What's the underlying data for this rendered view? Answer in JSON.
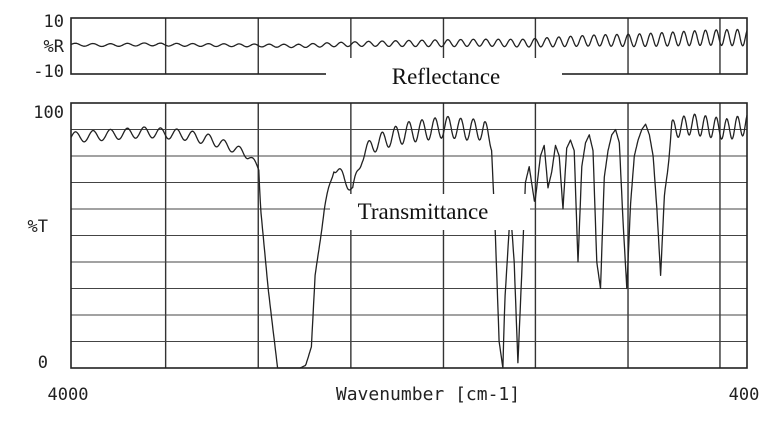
{
  "chart_data": [
    {
      "type": "line",
      "title": "",
      "annotation": "Reflectance",
      "ylabel": "%R",
      "xlim": [
        4000,
        400
      ],
      "ylim": [
        -10,
        10
      ],
      "ytick_labels": [
        "10",
        "-10"
      ],
      "grid": true,
      "series": [
        {
          "x": [
            4000,
            3800,
            3600,
            3400,
            3200,
            3000,
            2800,
            2600,
            2400,
            2200,
            2000,
            1800,
            1600,
            1400,
            1200,
            1000,
            800,
            600,
            400
          ],
          "y": [
            0.5,
            0.3,
            0.6,
            0.4,
            0.3,
            0.2,
            0.0,
            0.5,
            0.8,
            0.9,
            1.0,
            1.2,
            1.0,
            1.5,
            2.0,
            2.0,
            2.5,
            3.0,
            3.0
          ],
          "ripple": [
            1.0,
            1.0,
            1.0,
            1.0,
            1.0,
            1.0,
            1.2,
            1.5,
            1.8,
            2.2,
            2.5,
            2.5,
            2.8,
            3.5,
            4.0,
            4.5,
            5.0,
            5.5,
            6.0
          ]
        }
      ]
    },
    {
      "type": "line",
      "title": "",
      "annotation": "Transmittance",
      "ylabel": "%T",
      "xlabel": "Wavenumber [cm-1]",
      "xlim": [
        4000,
        400
      ],
      "ylim": [
        0,
        100
      ],
      "ytick_labels": [
        "100",
        "0"
      ],
      "xtick_labels": [
        "4000",
        "400"
      ],
      "grid": true,
      "series": [
        {
          "x": [
            4000,
            3800,
            3600,
            3400,
            3250,
            3100,
            3050,
            3000,
            2990,
            2950,
            2900,
            2850,
            2820,
            2780,
            2750,
            2720,
            2700,
            2650,
            2600,
            2550,
            2500,
            2450,
            2400,
            2300,
            2200,
            2100,
            2000,
            1900,
            1800,
            1760,
            1740,
            1720,
            1700,
            1690,
            1660,
            1640,
            1620,
            1600,
            1580,
            1560,
            1530,
            1500,
            1480,
            1460,
            1440,
            1420,
            1400,
            1380,
            1360,
            1340,
            1320,
            1300,
            1280,
            1260,
            1240,
            1220,
            1200,
            1180,
            1160,
            1140,
            1120,
            1100,
            1080,
            1060,
            1040,
            1020,
            1000,
            980,
            960,
            940,
            920,
            900,
            880,
            860,
            840,
            800,
            700,
            600,
            500,
            400
          ],
          "y": [
            87,
            88,
            89,
            88,
            86,
            82,
            80,
            75,
            60,
            30,
            0,
            0,
            0,
            0,
            1,
            8,
            35,
            60,
            76,
            72,
            67,
            80,
            84,
            87,
            89,
            90,
            91,
            90,
            90,
            85,
            50,
            10,
            0,
            25,
            60,
            40,
            2,
            35,
            70,
            76,
            62,
            80,
            84,
            68,
            74,
            84,
            80,
            60,
            83,
            86,
            82,
            40,
            76,
            85,
            88,
            82,
            40,
            30,
            72,
            82,
            88,
            90,
            85,
            55,
            30,
            62,
            80,
            86,
            90,
            92,
            88,
            80,
            60,
            35,
            65,
            90,
            92,
            91,
            90,
            92
          ],
          "ripple": [
            4,
            4,
            4,
            4,
            4,
            3,
            3,
            2,
            0,
            0,
            0,
            0,
            0,
            0,
            0,
            0,
            0,
            2,
            4,
            4,
            4,
            5,
            6,
            7,
            8,
            8,
            8,
            8,
            8,
            6,
            0,
            0,
            0,
            0,
            0,
            0,
            0,
            0,
            0,
            0,
            0,
            0,
            0,
            0,
            0,
            0,
            0,
            0,
            0,
            0,
            0,
            0,
            0,
            0,
            0,
            0,
            0,
            0,
            0,
            0,
            0,
            0,
            0,
            0,
            0,
            0,
            0,
            0,
            0,
            0,
            0,
            0,
            0,
            0,
            0,
            7,
            8,
            8,
            8,
            8
          ]
        }
      ]
    }
  ]
}
